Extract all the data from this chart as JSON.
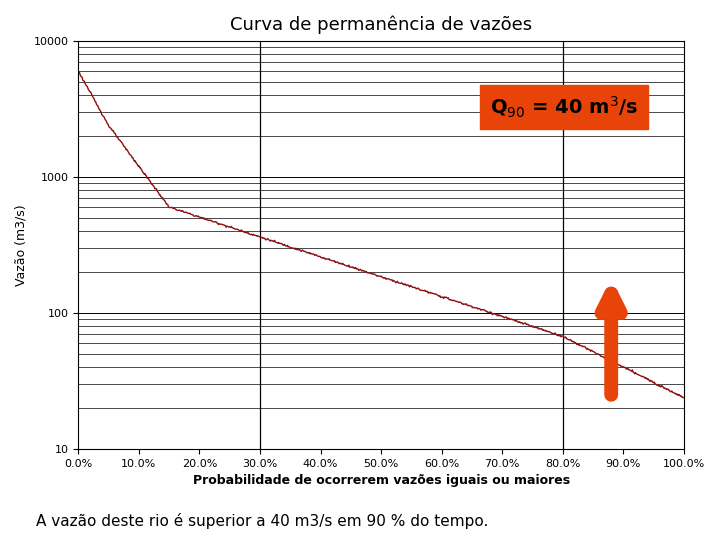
{
  "title": "Curva de permanência de vazões",
  "xlabel": "Probabilidade de ocorrerem vazões iguais ou maiores",
  "ylabel": "Vazão (m3/s)",
  "subtitle": "A vazão deste rio é superior a 40 m3/s em 90 % do tempo.",
  "xlim": [
    0,
    100
  ],
  "ylim_log": [
    10,
    10000
  ],
  "x_ticks": [
    0,
    10,
    20,
    30,
    40,
    50,
    60,
    70,
    80,
    90,
    100
  ],
  "x_tick_labels": [
    "0.0%",
    "10.0%",
    "20.0%",
    "30.0%",
    "40.0%",
    "50.0%",
    "60.0%",
    "70.0%",
    "80.0%",
    "90.0%",
    "100.0%"
  ],
  "curve_color": "#8B1010",
  "annotation_box_color": "#e8440a",
  "annotation_text_color": "#000000",
  "arrow_color": "#e8440a",
  "vline_x1": 30,
  "vline_x2": 80,
  "vline_color": "#000000",
  "background_color": "#ffffff",
  "grid_color": "#000000",
  "title_fontsize": 13,
  "axis_label_fontsize": 9,
  "tick_fontsize": 8
}
